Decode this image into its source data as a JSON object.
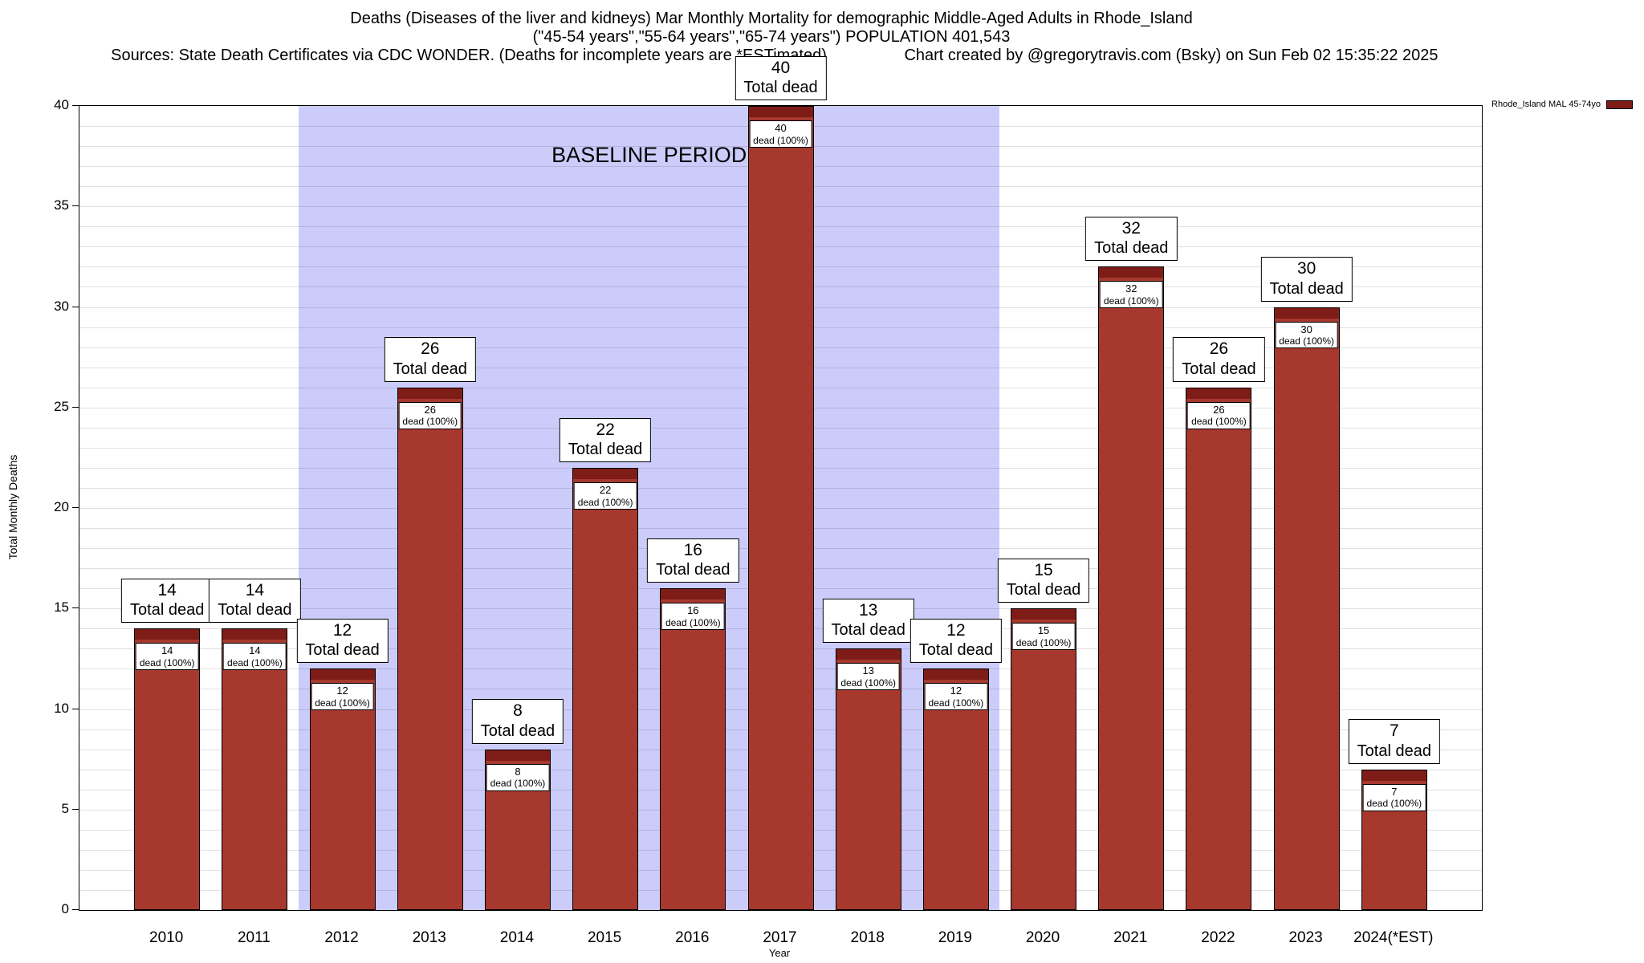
{
  "title": {
    "line1": "Deaths (Diseases of the liver and kidneys) Mar Monthly Mortality for demographic Middle-Aged Adults in Rhode_Island",
    "line2": "(\"45-54 years\",\"55-64 years\",\"65-74 years\") POPULATION 401,543",
    "sources": "Sources: State Death Certificates via CDC WONDER. (Deaths for incomplete years are *ESTimated)",
    "credit": "Chart created by @gregorytravis.com (Bsky) on Sun Feb 02 15:35:22 2025"
  },
  "legend": {
    "label": "Rhode_Island MAL 45-74yo",
    "color": "#7e1c17"
  },
  "chart_data": {
    "type": "bar",
    "title": "Deaths (Diseases of the liver and kidneys) Mar Monthly Mortality for demographic Middle-Aged Adults in Rhode_Island",
    "subtitle": "(\"45-54 years\",\"55-64 years\",\"65-74 years\") POPULATION 401,543",
    "xlabel": "Year",
    "ylabel": "Total Monthly Deaths",
    "ylim": [
      0,
      40
    ],
    "ytick_interval": 5,
    "grid": true,
    "legend_position": "top-right",
    "categories": [
      "2010",
      "2011",
      "2012",
      "2013",
      "2014",
      "2015",
      "2016",
      "2017",
      "2018",
      "2019",
      "2020",
      "2021",
      "2022",
      "2023",
      "2024(*EST)"
    ],
    "values": [
      14,
      14,
      12,
      26,
      8,
      22,
      16,
      40,
      13,
      12,
      15,
      32,
      26,
      30,
      7
    ],
    "bar_label_suffix": "Total dead",
    "inner_label_suffix": "dead (100%)",
    "baseline_period": {
      "label": "BASELINE PERIOD",
      "from_category": "2012",
      "to_category": "2019",
      "color": "#ccccfb"
    },
    "colors": {
      "bar_body": "#a6382e",
      "bar_cap": "#7e1c17"
    }
  }
}
